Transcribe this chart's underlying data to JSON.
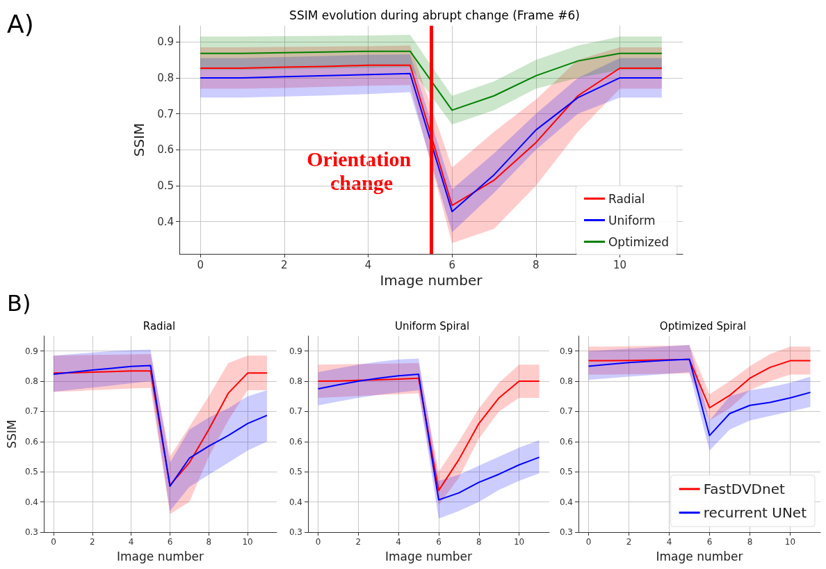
{
  "chart_data": [
    {
      "type": "line",
      "title": "SSIM evolution during abrupt change (Frame #6)",
      "xlabel": "Image number",
      "ylabel": "SSIM",
      "x": [
        0,
        1,
        2,
        3,
        4,
        5,
        6,
        7,
        8,
        9,
        10,
        11
      ],
      "xlim": [
        -0.5,
        11.5
      ],
      "xticks": [
        0,
        2,
        4,
        6,
        8,
        10
      ],
      "ylim": [
        0.31,
        0.945
      ],
      "yticks": [
        0.4,
        0.5,
        0.6,
        0.7,
        0.8,
        0.9
      ],
      "grid": true,
      "legend": "bottom right",
      "annotations": [
        "A)"
      ],
      "ref_lines": [
        {
          "axis": "x",
          "value": 5.5,
          "label": "Orientation change",
          "color": "#ff0000"
        }
      ],
      "series": [
        {
          "name": "Radial",
          "color": "#ff0000",
          "values": [
            0.827,
            0.827,
            0.83,
            0.832,
            0.835,
            0.835,
            0.445,
            0.515,
            0.62,
            0.75,
            0.827,
            0.827
          ],
          "lower": [
            0.77,
            0.77,
            0.772,
            0.775,
            0.778,
            0.78,
            0.34,
            0.38,
            0.5,
            0.65,
            0.77,
            0.77
          ],
          "upper": [
            0.885,
            0.885,
            0.886,
            0.887,
            0.888,
            0.89,
            0.55,
            0.65,
            0.74,
            0.85,
            0.885,
            0.885
          ]
        },
        {
          "name": "Uniform",
          "color": "#0000ff",
          "values": [
            0.8,
            0.8,
            0.803,
            0.806,
            0.809,
            0.812,
            0.428,
            0.53,
            0.655,
            0.745,
            0.8,
            0.8
          ],
          "lower": [
            0.745,
            0.745,
            0.748,
            0.751,
            0.755,
            0.76,
            0.37,
            0.48,
            0.6,
            0.7,
            0.745,
            0.745
          ],
          "upper": [
            0.855,
            0.855,
            0.858,
            0.861,
            0.864,
            0.865,
            0.49,
            0.59,
            0.7,
            0.8,
            0.855,
            0.855
          ]
        },
        {
          "name": "Optimized",
          "color": "#008000",
          "values": [
            0.868,
            0.868,
            0.87,
            0.872,
            0.874,
            0.874,
            0.71,
            0.75,
            0.806,
            0.847,
            0.868,
            0.868
          ],
          "lower": [
            0.822,
            0.822,
            0.824,
            0.826,
            0.828,
            0.83,
            0.67,
            0.71,
            0.77,
            0.8,
            0.822,
            0.822
          ],
          "upper": [
            0.915,
            0.915,
            0.916,
            0.917,
            0.918,
            0.92,
            0.75,
            0.79,
            0.85,
            0.89,
            0.915,
            0.915
          ]
        }
      ]
    },
    {
      "type": "line",
      "title": "Radial",
      "xlabel": "Image number",
      "ylabel": "SSIM",
      "x": [
        0,
        1,
        2,
        3,
        4,
        5,
        6,
        7,
        8,
        9,
        10,
        11
      ],
      "xlim": [
        -0.5,
        11.5
      ],
      "xticks": [
        0,
        2,
        4,
        6,
        8,
        10
      ],
      "ylim": [
        0.3,
        0.95
      ],
      "yticks": [
        0.3,
        0.4,
        0.5,
        0.6,
        0.7,
        0.8,
        0.9
      ],
      "grid": true,
      "annotations": [
        "B)"
      ],
      "series": [
        {
          "color": "#ff0000",
          "values": [
            0.827,
            0.828,
            0.83,
            0.832,
            0.834,
            0.834,
            0.455,
            0.53,
            0.64,
            0.76,
            0.827,
            0.827
          ],
          "lower": [
            0.765,
            0.767,
            0.77,
            0.773,
            0.776,
            0.778,
            0.36,
            0.4,
            0.55,
            0.67,
            0.77,
            0.77
          ],
          "upper": [
            0.885,
            0.886,
            0.887,
            0.888,
            0.889,
            0.89,
            0.55,
            0.65,
            0.75,
            0.86,
            0.885,
            0.885
          ]
        },
        {
          "color": "#0000ff",
          "values": [
            0.823,
            0.83,
            0.837,
            0.843,
            0.849,
            0.852,
            0.452,
            0.545,
            0.585,
            0.62,
            0.66,
            0.687
          ],
          "lower": [
            0.765,
            0.772,
            0.779,
            0.786,
            0.793,
            0.8,
            0.37,
            0.45,
            0.49,
            0.53,
            0.57,
            0.6
          ],
          "upper": [
            0.885,
            0.89,
            0.895,
            0.9,
            0.903,
            0.905,
            0.53,
            0.64,
            0.68,
            0.71,
            0.75,
            0.77
          ]
        }
      ]
    },
    {
      "type": "line",
      "title": "Uniform Spiral",
      "xlabel": "Image number",
      "x": [
        0,
        1,
        2,
        3,
        4,
        5,
        6,
        7,
        8,
        9,
        10,
        11
      ],
      "xlim": [
        -0.5,
        11.5
      ],
      "xticks": [
        0,
        2,
        4,
        6,
        8,
        10
      ],
      "ylim": [
        0.3,
        0.95
      ],
      "yticks": [
        0.3,
        0.4,
        0.5,
        0.6,
        0.7,
        0.8,
        0.9
      ],
      "grid": true,
      "series": [
        {
          "color": "#ff0000",
          "values": [
            0.8,
            0.801,
            0.803,
            0.805,
            0.807,
            0.81,
            0.438,
            0.54,
            0.66,
            0.745,
            0.8,
            0.8
          ],
          "lower": [
            0.745,
            0.748,
            0.751,
            0.754,
            0.757,
            0.76,
            0.39,
            0.48,
            0.61,
            0.7,
            0.745,
            0.745
          ],
          "upper": [
            0.855,
            0.856,
            0.857,
            0.858,
            0.859,
            0.86,
            0.5,
            0.6,
            0.71,
            0.795,
            0.855,
            0.855
          ]
        },
        {
          "color": "#0000ff",
          "values": [
            0.775,
            0.788,
            0.8,
            0.81,
            0.818,
            0.823,
            0.407,
            0.43,
            0.465,
            0.492,
            0.523,
            0.548
          ],
          "lower": [
            0.72,
            0.733,
            0.745,
            0.755,
            0.763,
            0.77,
            0.345,
            0.37,
            0.4,
            0.44,
            0.47,
            0.495
          ],
          "upper": [
            0.83,
            0.843,
            0.855,
            0.865,
            0.872,
            0.875,
            0.47,
            0.49,
            0.52,
            0.55,
            0.58,
            0.605
          ]
        }
      ]
    },
    {
      "type": "line",
      "title": "Optimized Spiral",
      "xlabel": "Image number",
      "x": [
        0,
        1,
        2,
        3,
        4,
        5,
        6,
        7,
        8,
        9,
        10,
        11
      ],
      "xlim": [
        -0.5,
        11.5
      ],
      "xticks": [
        0,
        2,
        4,
        6,
        8,
        10
      ],
      "ylim": [
        0.3,
        0.95
      ],
      "yticks": [
        0.3,
        0.4,
        0.5,
        0.6,
        0.7,
        0.8,
        0.9
      ],
      "grid": true,
      "legend": "bottom right",
      "series": [
        {
          "name": "FastDVDnet",
          "color": "#ff0000",
          "values": [
            0.868,
            0.868,
            0.869,
            0.87,
            0.871,
            0.872,
            0.712,
            0.753,
            0.81,
            0.846,
            0.868,
            0.868
          ],
          "lower": [
            0.822,
            0.822,
            0.823,
            0.824,
            0.825,
            0.826,
            0.67,
            0.71,
            0.77,
            0.8,
            0.822,
            0.822
          ],
          "upper": [
            0.915,
            0.915,
            0.916,
            0.917,
            0.918,
            0.92,
            0.757,
            0.8,
            0.85,
            0.89,
            0.915,
            0.915
          ]
        },
        {
          "name": "recurrent UNet",
          "color": "#0000ff",
          "values": [
            0.85,
            0.856,
            0.862,
            0.866,
            0.87,
            0.873,
            0.62,
            0.693,
            0.72,
            0.73,
            0.745,
            0.763
          ],
          "lower": [
            0.805,
            0.81,
            0.815,
            0.82,
            0.825,
            0.83,
            0.57,
            0.64,
            0.67,
            0.685,
            0.7,
            0.715
          ],
          "upper": [
            0.9,
            0.904,
            0.908,
            0.912,
            0.916,
            0.92,
            0.67,
            0.75,
            0.77,
            0.78,
            0.795,
            0.815
          ]
        }
      ]
    }
  ]
}
